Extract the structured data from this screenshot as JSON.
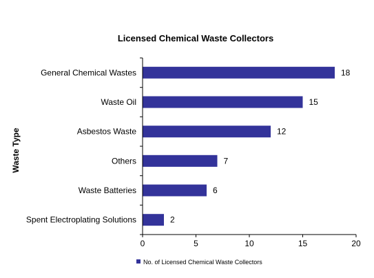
{
  "chart_data": {
    "type": "bar",
    "orientation": "horizontal",
    "title": "Licensed Chemical Waste Collectors",
    "xlabel": "",
    "ylabel": "Waste Type",
    "categories": [
      "General Chemical Wastes",
      "Waste Oil",
      "Asbestos Waste",
      "Others",
      "Waste Batteries",
      "Spent Electroplating Solutions"
    ],
    "series": [
      {
        "name": "No. of Licensed Chemical Waste Collectors",
        "values": [
          18,
          15,
          12,
          7,
          6,
          2
        ],
        "color": "#33339a"
      }
    ],
    "xlim": [
      0,
      20
    ],
    "xticks": [
      0,
      5,
      10,
      15,
      20
    ],
    "grid": false,
    "legend_position": "bottom",
    "data_labels": true
  }
}
